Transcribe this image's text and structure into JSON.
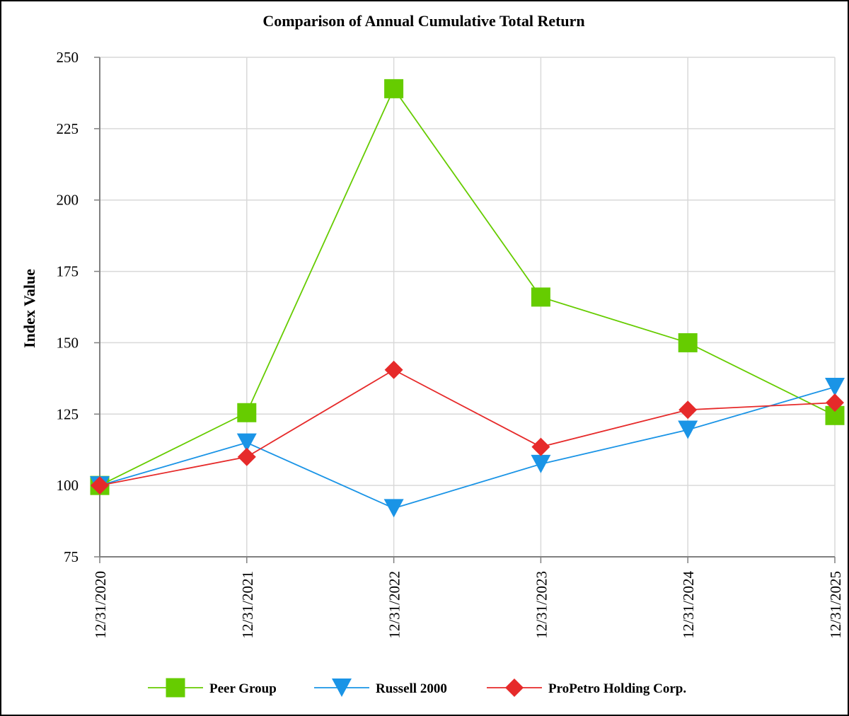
{
  "chart_data": {
    "type": "line",
    "title": "Comparison of Annual Cumulative Total Return",
    "xlabel": "",
    "ylabel": "Index Value",
    "categories": [
      "12/31/2020",
      "12/31/2021",
      "12/31/2022",
      "12/31/2023",
      "12/31/2024",
      "12/31/2025"
    ],
    "ylim": [
      75,
      250
    ],
    "yticks": [
      75,
      100,
      125,
      150,
      175,
      200,
      225,
      250
    ],
    "grid": true,
    "legend_position": "bottom",
    "series": [
      {
        "name": "Peer Group",
        "marker": "square",
        "color": "#66CC00",
        "values": [
          100,
          125.5,
          239,
          166,
          150,
          124.5
        ]
      },
      {
        "name": "Russell 2000",
        "marker": "triangle-down",
        "color": "#1A94E6",
        "values": [
          100,
          115,
          92,
          107.5,
          119.5,
          134.5
        ]
      },
      {
        "name": "ProPetro Holding Corp.",
        "marker": "diamond",
        "color": "#E62A2A",
        "values": [
          100,
          110,
          140.5,
          113.5,
          126.5,
          129
        ]
      }
    ]
  }
}
